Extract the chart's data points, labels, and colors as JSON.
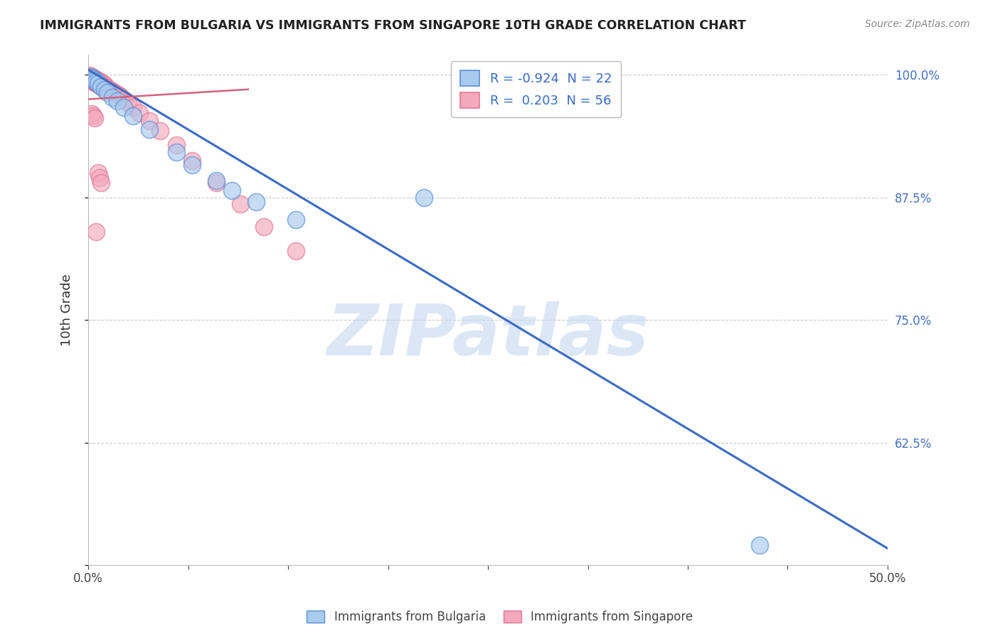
{
  "title": "IMMIGRANTS FROM BULGARIA VS IMMIGRANTS FROM SINGAPORE 10TH GRADE CORRELATION CHART",
  "source": "Source: ZipAtlas.com",
  "ylabel": "10th Grade",
  "xlim": [
    0.0,
    0.5
  ],
  "ylim": [
    0.5,
    1.02
  ],
  "yticks": [
    0.5,
    0.625,
    0.75,
    0.875,
    1.0
  ],
  "ytick_labels": [
    "",
    "62.5%",
    "75.0%",
    "87.5%",
    "100.0%"
  ],
  "xticks": [
    0.0,
    0.0625,
    0.125,
    0.1875,
    0.25,
    0.3125,
    0.375,
    0.4375,
    0.5
  ],
  "xtick_labels": [
    "0.0%",
    "",
    "",
    "",
    "",
    "",
    "",
    "",
    "50.0%"
  ],
  "bulgaria_R": -0.924,
  "bulgaria_N": 22,
  "singapore_R": 0.203,
  "singapore_N": 56,
  "bulgaria_color": "#A8CAEE",
  "singapore_color": "#F4A8BC",
  "bulgaria_edge_color": "#5B8ED4",
  "singapore_edge_color": "#E07898",
  "bulgaria_line_color": "#3B6AC4",
  "singapore_line_color": "#D46080",
  "legend_R_color": "#3B6AC4",
  "watermark_text": "ZIPatlas",
  "watermark_color": "#C5D8F0",
  "background_color": "#FFFFFF",
  "grid_color": "#CCCCCC",
  "right_tick_color": "#4472C4",
  "bulgaria_label": "Immigrants from Bulgaria",
  "singapore_label": "Immigrants from Singapore",
  "bulgaria_line_x": [
    0.0,
    0.5
  ],
  "bulgaria_line_y": [
    1.005,
    0.517
  ],
  "singapore_line_x": [
    0.0,
    0.1
  ],
  "singapore_line_y": [
    0.975,
    0.985
  ],
  "bulgaria_scatter_x": [
    0.001,
    0.002,
    0.003,
    0.004,
    0.005,
    0.006,
    0.008,
    0.01,
    0.012,
    0.015,
    0.018,
    0.022,
    0.028,
    0.038,
    0.055,
    0.065,
    0.08,
    0.09,
    0.105,
    0.13,
    0.21,
    0.42
  ],
  "bulgaria_scatter_y": [
    0.998,
    0.997,
    0.996,
    0.994,
    0.993,
    0.991,
    0.988,
    0.985,
    0.982,
    0.977,
    0.973,
    0.967,
    0.958,
    0.944,
    0.921,
    0.908,
    0.892,
    0.882,
    0.87,
    0.852,
    0.875,
    0.52
  ],
  "singapore_scatter_x": [
    0.001,
    0.001,
    0.001,
    0.002,
    0.002,
    0.002,
    0.003,
    0.003,
    0.003,
    0.004,
    0.004,
    0.004,
    0.005,
    0.005,
    0.005,
    0.006,
    0.006,
    0.006,
    0.007,
    0.007,
    0.007,
    0.008,
    0.008,
    0.009,
    0.009,
    0.01,
    0.01,
    0.011,
    0.012,
    0.013,
    0.014,
    0.015,
    0.016,
    0.017,
    0.018,
    0.019,
    0.02,
    0.022,
    0.025,
    0.028,
    0.032,
    0.038,
    0.045,
    0.055,
    0.065,
    0.08,
    0.095,
    0.11,
    0.13,
    0.002,
    0.003,
    0.004,
    0.005,
    0.006,
    0.007,
    0.008
  ],
  "singapore_scatter_y": [
    0.999,
    0.997,
    0.995,
    0.998,
    0.996,
    0.994,
    0.997,
    0.995,
    0.993,
    0.996,
    0.994,
    0.992,
    0.995,
    0.993,
    0.991,
    0.994,
    0.992,
    0.99,
    0.993,
    0.991,
    0.989,
    0.992,
    0.99,
    0.991,
    0.989,
    0.99,
    0.988,
    0.987,
    0.986,
    0.985,
    0.984,
    0.983,
    0.982,
    0.981,
    0.98,
    0.979,
    0.978,
    0.975,
    0.971,
    0.967,
    0.961,
    0.953,
    0.943,
    0.928,
    0.912,
    0.89,
    0.868,
    0.845,
    0.82,
    0.96,
    0.958,
    0.956,
    0.84,
    0.9,
    0.895,
    0.89
  ]
}
